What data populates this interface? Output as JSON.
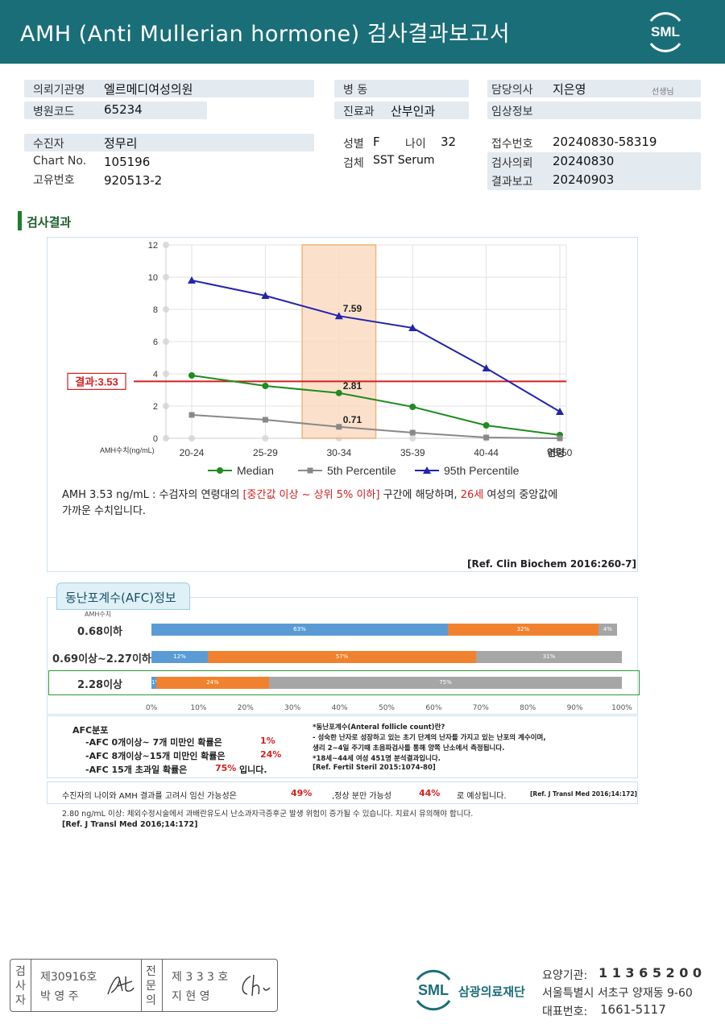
{
  "header": {
    "title": "AMH (Anti Mullerian hormone) 검사결과보고서",
    "logo": "SML"
  },
  "info": {
    "req_org_label": "의뢰기관명",
    "req_org": "엘르메디여성의원",
    "hosp_code_label": "병원코드",
    "hosp_code": "65234",
    "patient_label": "수진자",
    "patient": "정무리",
    "chart_label": "Chart No.",
    "chart": "105196",
    "uid_label": "고유번호",
    "uid": "920513-2",
    "ward_label": "병  동",
    "ward": "",
    "dept_label": "진료과",
    "dept": "산부인과",
    "sex_label": "성별",
    "sex": "F",
    "age_label": "나이",
    "age": "32",
    "specimen_label": "검체",
    "specimen": "SST Serum",
    "doctor_label": "담당의사",
    "doctor": "지은영",
    "doctor_suffix": "선생님",
    "clinical_label": "임상정보",
    "clinical": "",
    "receipt_label": "접수번호",
    "receipt": "20240830-58319",
    "request_label": "검사의뢰",
    "request": "20240830",
    "report_label": "결과보고",
    "report": "20240903"
  },
  "section_title": "검사결과",
  "chart_data": {
    "type": "line",
    "categories": [
      "20-24",
      "25-29",
      "30-34",
      "35-39",
      "40-44",
      "45-50"
    ],
    "x_unit": "연령",
    "y_axis_label": "AMH수치(ng/mL)",
    "ylim": [
      0,
      12
    ],
    "yticks": [
      "0",
      "2",
      "4",
      "6",
      "8",
      "10",
      "12"
    ],
    "series": [
      {
        "name": "Median",
        "values": [
          3.9,
          3.25,
          2.81,
          1.95,
          0.8,
          0.2
        ],
        "color": "#1e8c1e"
      },
      {
        "name": "5th Percentile",
        "values": [
          1.45,
          1.15,
          0.71,
          0.35,
          0.05,
          0.0
        ],
        "color": "#888888"
      },
      {
        "name": "95th Percentile",
        "values": [
          9.8,
          8.85,
          7.59,
          6.85,
          4.35,
          1.65
        ],
        "color": "#2323b0"
      }
    ],
    "point_labels": [
      "7.59",
      "2.81",
      "0.71"
    ],
    "result_line": {
      "value": 3.53,
      "label": "결과:3.53",
      "color": "#d3201f"
    },
    "highlight_category": "30-34"
  },
  "interpretation": {
    "p1": "AMH  3.53 ng/mL : 수검자의 연령대의 ",
    "p_red1": "[중간값 이상 ~ 상위 5% 이하]",
    "p2": "  구간에 해당하며, ",
    "p_red2": "26세",
    "p3": " 여성의 중앙값에",
    "line2": "가까운 수치입니다.",
    "ref": "[Ref. Clin Biochem 2016:260-7]"
  },
  "afc": {
    "tab": "동난포계수(AFC)정보",
    "amh_header": "AMH수치",
    "rows": [
      {
        "label": "0.68이하",
        "segs": [
          63,
          32,
          4
        ],
        "labels": [
          "63%",
          "32%",
          "4%"
        ]
      },
      {
        "label": "0.69이상~2.27이하",
        "segs": [
          12,
          57,
          31
        ],
        "labels": [
          "12%",
          "57%",
          "31%"
        ]
      },
      {
        "label": "2.28이상",
        "segs": [
          1,
          24,
          75
        ],
        "labels": [
          "1%",
          "24%",
          "75%"
        ]
      }
    ],
    "colors": [
      "#5b9bd5",
      "#f0822f",
      "#a6a6a6"
    ],
    "axis": [
      "0%",
      "10%",
      "20%",
      "30%",
      "40%",
      "50%",
      "60%",
      "70%",
      "80%",
      "90%",
      "100%"
    ]
  },
  "afc_info": {
    "title": "AFC분포",
    "l1": "-AFC  0개이상~ 7개 미만인 확률은",
    "v1": "1%",
    "l2": "-AFC  8개이상~15개 미만인 확률은",
    "v2": "24%",
    "l3": "-AFC  15개 초과일 확률은",
    "v3": "75%",
    "l3_end": "입니다.",
    "r1": "*동난포계수(Anteral  follicle  count)란?",
    "r2": "- 성숙한 난자로 성장하고 있는 초기 단계의 난자를 가지고 있는 난포의 계수이며,",
    "r3": "  생리 2~4일 주기때 초음파검사를 통해 양쪽 난소에서 측정됩니다.",
    "r4": "*18세~44세 여성 451명 분석결과입니다.",
    "r5": "[Ref. Fertil Steril 2015:1074-80]"
  },
  "pregnancy": {
    "t1": "수진자의  나이와 AMH 결과를 고려시 임신 가능성은",
    "v1": "49%",
    "t2": ",정상 분만 가능성",
    "v2": "44%",
    "t3": "로 예상됩니다.",
    "ref": "[Ref. J Transl Med 2016;14:172]"
  },
  "warning": {
    "text": "2.80  ng/mL  이상: 체외수정시술에서 과배란유도시 난소과자극증후군 발생 위험이 증가될 수 있습니다. 치료시 유의해야 합니다.",
    "ref": "[Ref. J Transl Med 2016;14:172]"
  },
  "signature": {
    "left_label": "검사자",
    "left_no": "제30916호",
    "left_name": "박 영 주",
    "right_label": "전문의",
    "right_no": "제 3 3 3 호",
    "right_name": "지 현 영"
  },
  "footer": {
    "org": "삼광의료재단",
    "code_label": "요양기관:",
    "code": "1 1 3 6 5 2 0 0",
    "address": "서울특별시 서초구 양재동 9-60",
    "phone_label": "대표번호:",
    "phone": "1661-5117"
  }
}
